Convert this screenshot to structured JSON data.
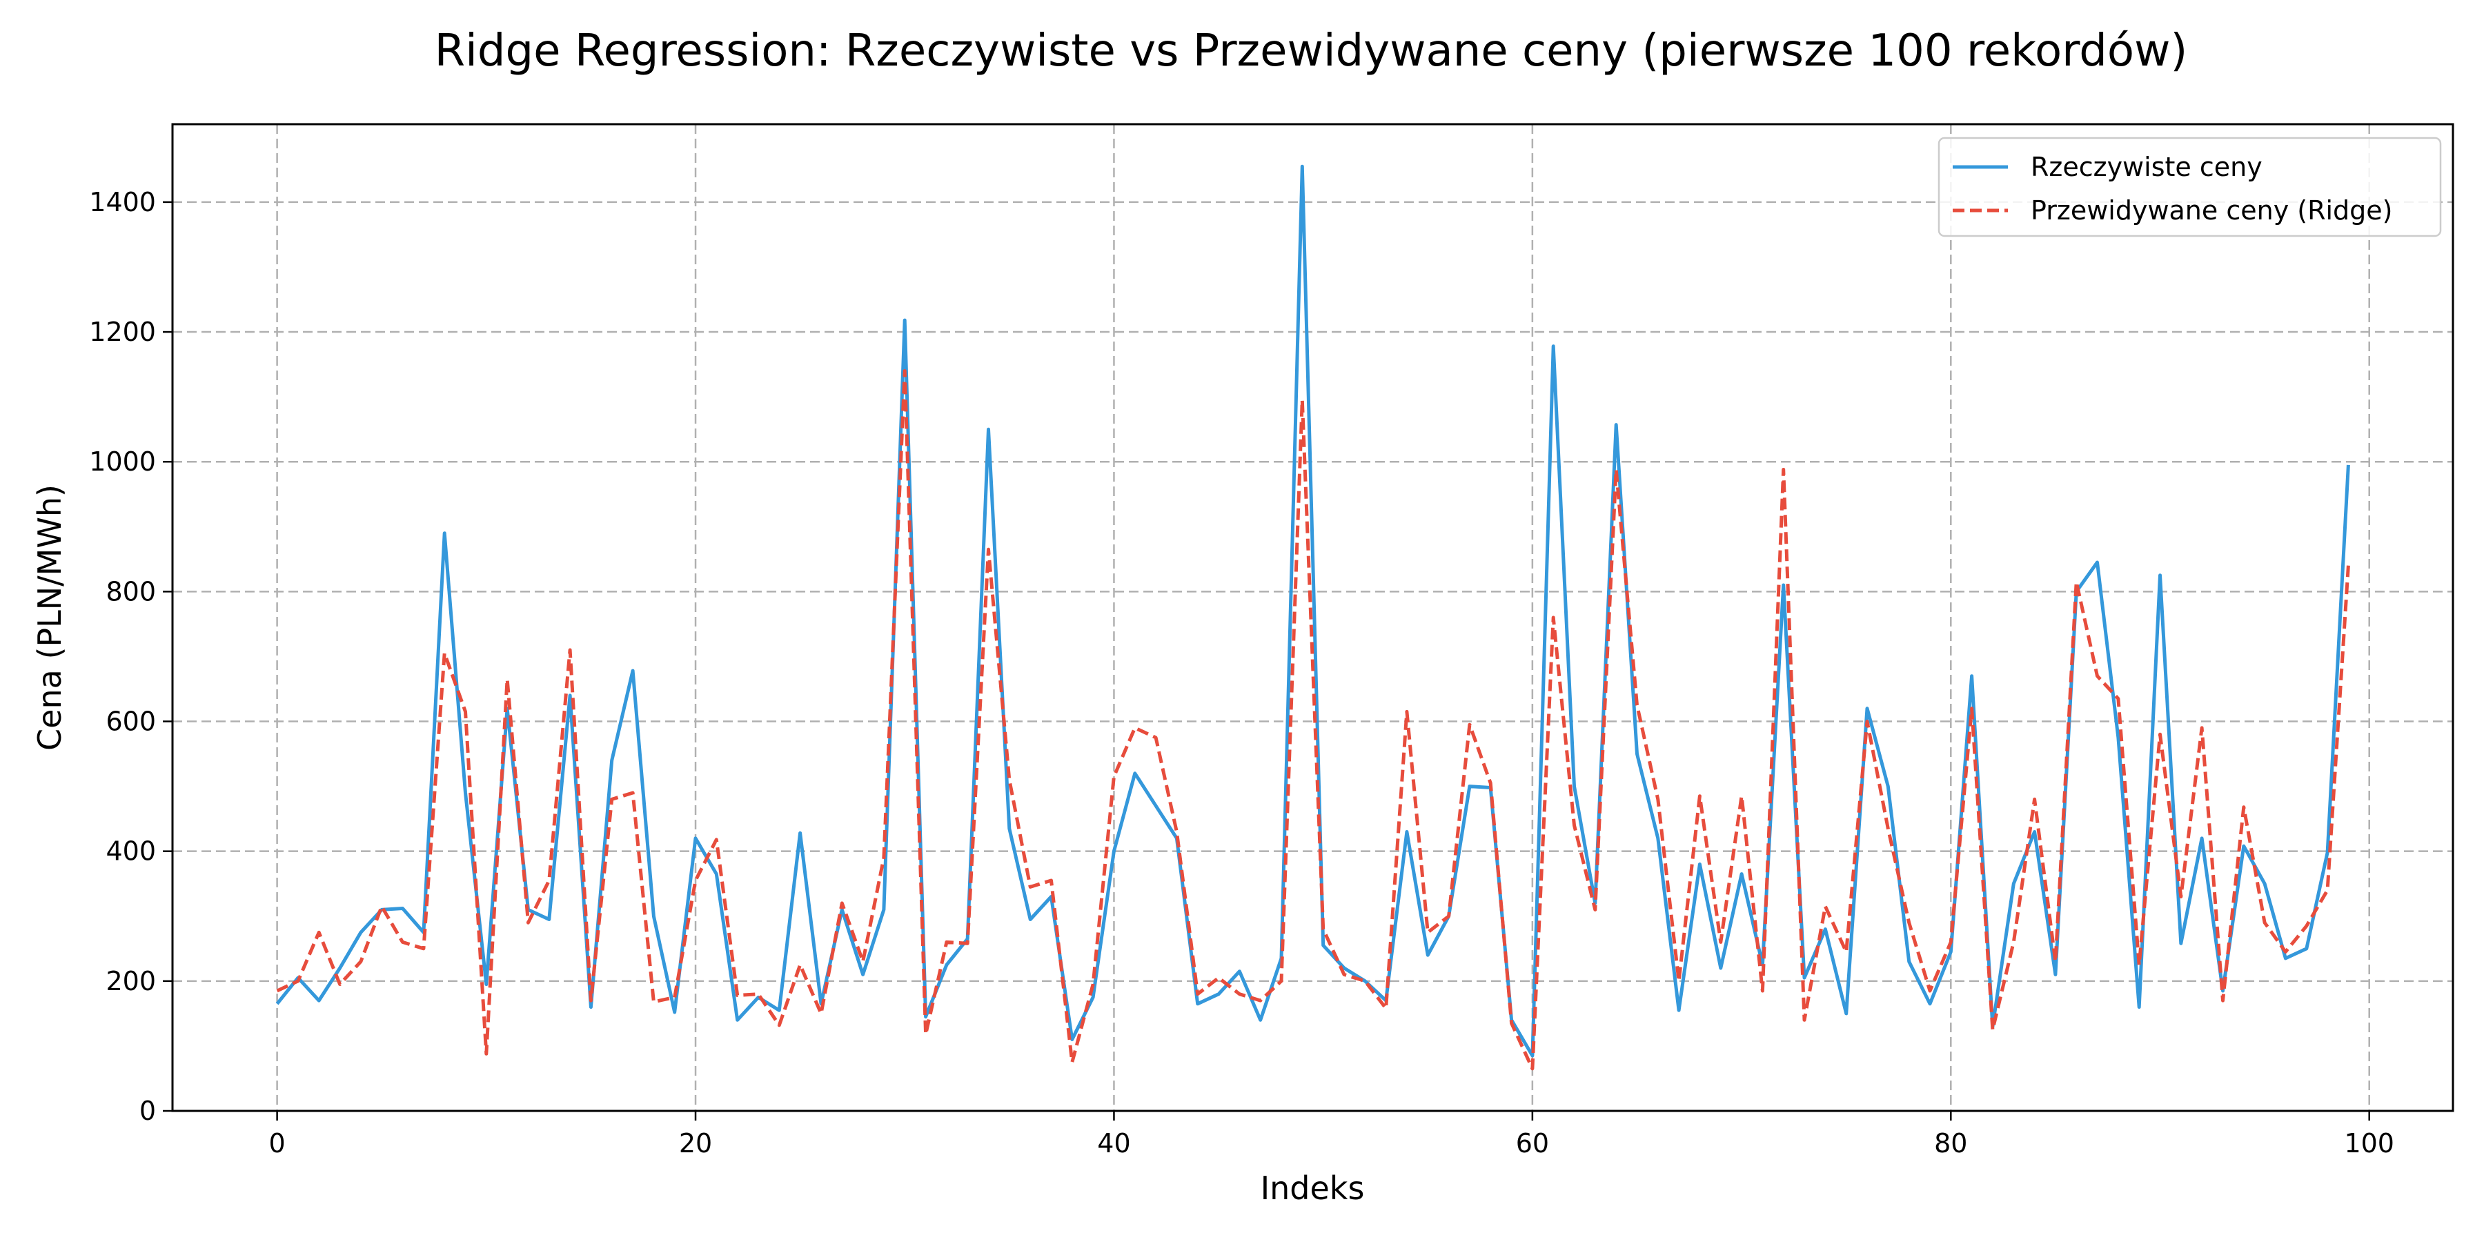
{
  "chart_data": {
    "type": "line",
    "title": "Ridge Regression: Rzeczywiste vs Przewidywane ceny (pierwsze 100 rekordów)",
    "xlabel": "Indeks",
    "ylabel": "Cena (PLN/MWh)",
    "xlim": [
      -5,
      104
    ],
    "ylim": [
      0,
      1520
    ],
    "xticks": [
      0,
      20,
      40,
      60,
      80,
      100
    ],
    "yticks": [
      0,
      200,
      400,
      600,
      800,
      1000,
      1200,
      1400
    ],
    "grid": true,
    "legend_position": "top-right",
    "series": [
      {
        "name": "Rzeczywiste ceny",
        "color": "#3498db",
        "style": "solid",
        "values": [
          165,
          205,
          170,
          220,
          275,
          310,
          312,
          275,
          890,
          490,
          195,
          620,
          310,
          295,
          640,
          160,
          540,
          678,
          300,
          152,
          420,
          365,
          140,
          175,
          155,
          428,
          165,
          310,
          210,
          310,
          1218,
          145,
          225,
          265,
          1050,
          435,
          295,
          330,
          110,
          175,
          400,
          520,
          470,
          420,
          165,
          180,
          215,
          140,
          235,
          1455,
          255,
          220,
          200,
          170,
          430,
          240,
          300,
          500,
          498,
          140,
          85,
          1178,
          500,
          320,
          1057,
          550,
          420,
          155,
          380,
          220,
          365,
          225,
          810,
          205,
          280,
          150,
          620,
          500,
          230,
          165,
          245,
          670,
          130,
          350,
          430,
          210,
          800,
          845,
          575,
          160,
          825,
          258,
          420,
          185,
          408,
          350,
          235,
          250,
          398,
          995
        ]
      },
      {
        "name": "Przewidywane ceny (Ridge)",
        "color": "#e74c3c",
        "style": "dashed",
        "values": [
          185,
          200,
          275,
          195,
          230,
          315,
          260,
          250,
          705,
          615,
          88,
          665,
          290,
          355,
          710,
          170,
          480,
          490,
          168,
          175,
          355,
          418,
          178,
          180,
          132,
          225,
          150,
          320,
          230,
          390,
          1140,
          118,
          260,
          258,
          865,
          510,
          345,
          355,
          75,
          195,
          515,
          590,
          575,
          430,
          180,
          205,
          180,
          170,
          200,
          1095,
          280,
          210,
          200,
          158,
          615,
          275,
          300,
          595,
          505,
          135,
          65,
          760,
          440,
          310,
          988,
          625,
          480,
          200,
          485,
          260,
          485,
          185,
          988,
          140,
          315,
          245,
          600,
          435,
          290,
          185,
          260,
          620,
          125,
          260,
          480,
          230,
          815,
          670,
          635,
          225,
          580,
          330,
          590,
          170,
          468,
          290,
          245,
          285,
          340,
          840
        ]
      }
    ]
  }
}
